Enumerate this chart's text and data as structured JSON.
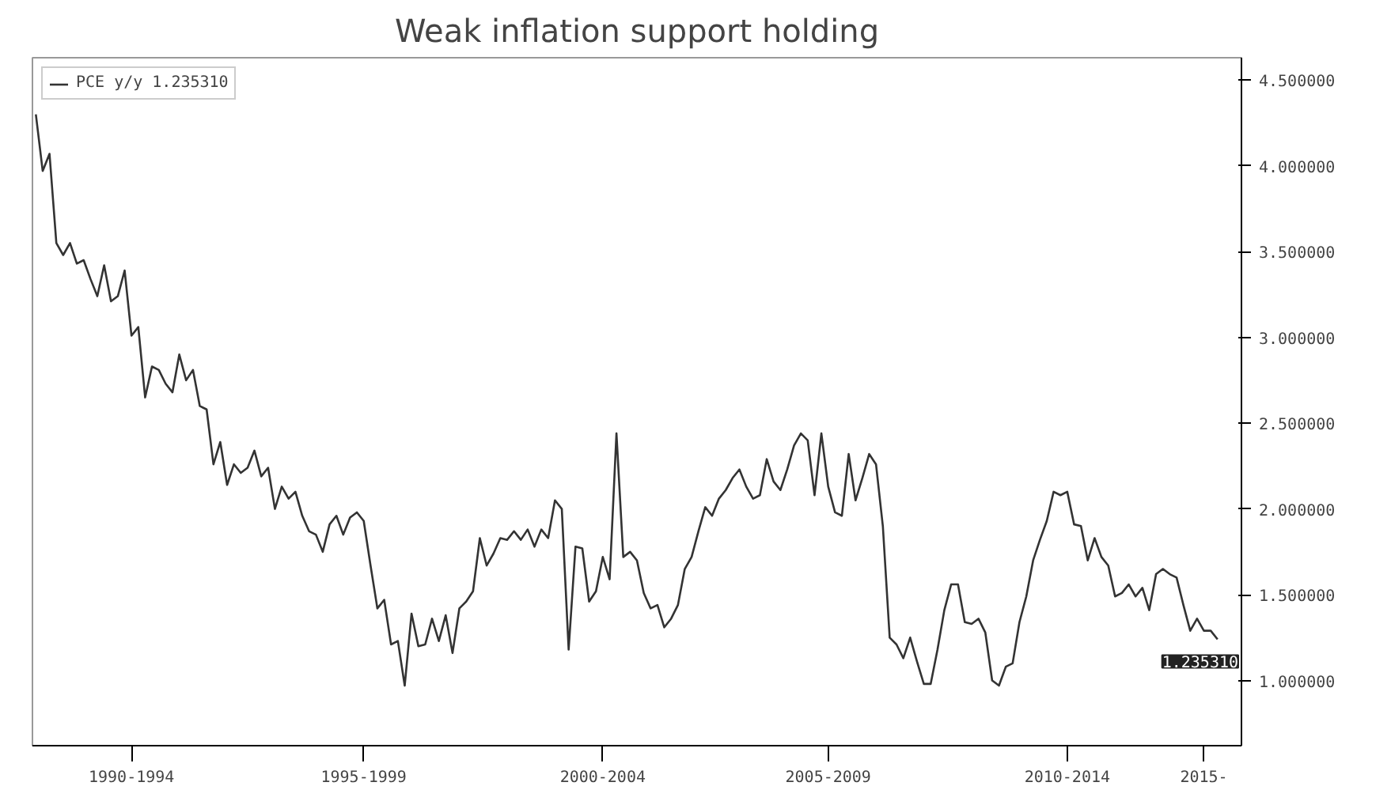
{
  "chart_data": {
    "type": "line",
    "title": "Weak inflation support holding",
    "categories": [
      null,
      null,
      null,
      null,
      null,
      null,
      null,
      null,
      null,
      null,
      null,
      null,
      null,
      null,
      "1990-1994",
      null,
      null,
      null,
      null,
      null,
      null,
      null,
      null,
      null,
      null,
      null,
      null,
      null,
      null,
      null,
      null,
      null,
      null,
      null,
      null,
      null,
      null,
      null,
      null,
      null,
      null,
      null,
      null,
      null,
      null,
      null,
      null,
      null,
      "1995-1999",
      null,
      null,
      null,
      null,
      null,
      null,
      null,
      null,
      null,
      null,
      null,
      null,
      null,
      null,
      null,
      null,
      null,
      null,
      null,
      null,
      null,
      null,
      null,
      null,
      null,
      null,
      null,
      null,
      null,
      null,
      null,
      null,
      null,
      null,
      "2000-2004",
      null,
      null,
      null,
      null,
      null,
      null,
      null,
      null,
      null,
      null,
      null,
      null,
      null,
      null,
      null,
      null,
      null,
      null,
      null,
      null,
      null,
      null,
      null,
      null,
      null,
      null,
      null,
      null,
      null,
      null,
      null,
      null,
      "2005-2009",
      null,
      null,
      null,
      null,
      null,
      null,
      null,
      null,
      null,
      null,
      null,
      null,
      null,
      null,
      null,
      null,
      null,
      null,
      null,
      null,
      null,
      null,
      null,
      null,
      null,
      null,
      null,
      null,
      null,
      null,
      null,
      null,
      null,
      null,
      "2010-2014",
      null,
      null,
      null,
      null,
      null,
      null,
      null,
      null,
      null,
      null,
      null,
      null,
      null,
      null,
      null,
      null,
      null,
      null,
      null,
      "2015-",
      null,
      null
    ],
    "series": [
      {
        "name": "PCE y/y 1.235310",
        "color": "#333333",
        "values": [
          4.3,
          3.97,
          4.07,
          3.55,
          3.48,
          3.55,
          3.43,
          3.45,
          3.34,
          3.24,
          3.42,
          3.21,
          3.24,
          3.39,
          3.01,
          3.06,
          2.65,
          2.83,
          2.81,
          2.73,
          2.68,
          2.9,
          2.75,
          2.81,
          2.6,
          2.58,
          2.26,
          2.39,
          2.14,
          2.26,
          2.21,
          2.24,
          2.34,
          2.19,
          2.24,
          2.0,
          2.13,
          2.06,
          2.1,
          1.96,
          1.87,
          1.85,
          1.75,
          1.91,
          1.96,
          1.85,
          1.95,
          1.98,
          1.93,
          1.67,
          1.42,
          1.47,
          1.21,
          1.23,
          0.97,
          1.39,
          1.2,
          1.21,
          1.36,
          1.23,
          1.38,
          1.16,
          1.42,
          1.46,
          1.52,
          1.83,
          1.67,
          1.74,
          1.83,
          1.82,
          1.87,
          1.82,
          1.88,
          1.78,
          1.88,
          1.83,
          2.05,
          2.0,
          1.18,
          1.78,
          1.77,
          1.46,
          1.52,
          1.72,
          1.59,
          2.44,
          1.72,
          1.75,
          1.7,
          1.51,
          1.42,
          1.44,
          1.31,
          1.36,
          1.44,
          1.65,
          1.72,
          1.87,
          2.01,
          1.96,
          2.06,
          2.11,
          2.18,
          2.23,
          2.13,
          2.06,
          2.08,
          2.29,
          2.16,
          2.11,
          2.23,
          2.37,
          2.44,
          2.4,
          2.08,
          2.44,
          2.13,
          1.98,
          1.96,
          2.32,
          2.05,
          2.18,
          2.32,
          2.26,
          1.9,
          1.25,
          1.21,
          1.13,
          1.25,
          1.11,
          0.98,
          0.98,
          1.18,
          1.41,
          1.56,
          1.56,
          1.34,
          1.33,
          1.36,
          1.28,
          1.0,
          0.97,
          1.08,
          1.1,
          1.34,
          1.49,
          1.7,
          1.82,
          1.93,
          2.1,
          2.08,
          2.1,
          1.91,
          1.9,
          1.7,
          1.83,
          1.72,
          1.67,
          1.49,
          1.51,
          1.56,
          1.49,
          1.54,
          1.41,
          1.62,
          1.65,
          1.62,
          1.6,
          1.44,
          1.29,
          1.36,
          1.29,
          1.29,
          1.24
        ]
      }
    ],
    "ylim": [
      0.62,
      4.63
    ],
    "yticks": [
      {
        "value": 1.0,
        "label": "1.000000"
      },
      {
        "value": 1.5,
        "label": "1.500000"
      },
      {
        "value": 2.0,
        "label": "2.000000"
      },
      {
        "value": 2.5,
        "label": "2.500000"
      },
      {
        "value": 3.0,
        "label": "3.000000"
      },
      {
        "value": 3.5,
        "label": "3.500000"
      },
      {
        "value": 4.0,
        "label": "4.000000"
      },
      {
        "value": 4.5,
        "label": "4.500000"
      }
    ],
    "annotations": [
      "1.235310"
    ],
    "legend": "top left",
    "grid": false,
    "line_style": "solid"
  }
}
